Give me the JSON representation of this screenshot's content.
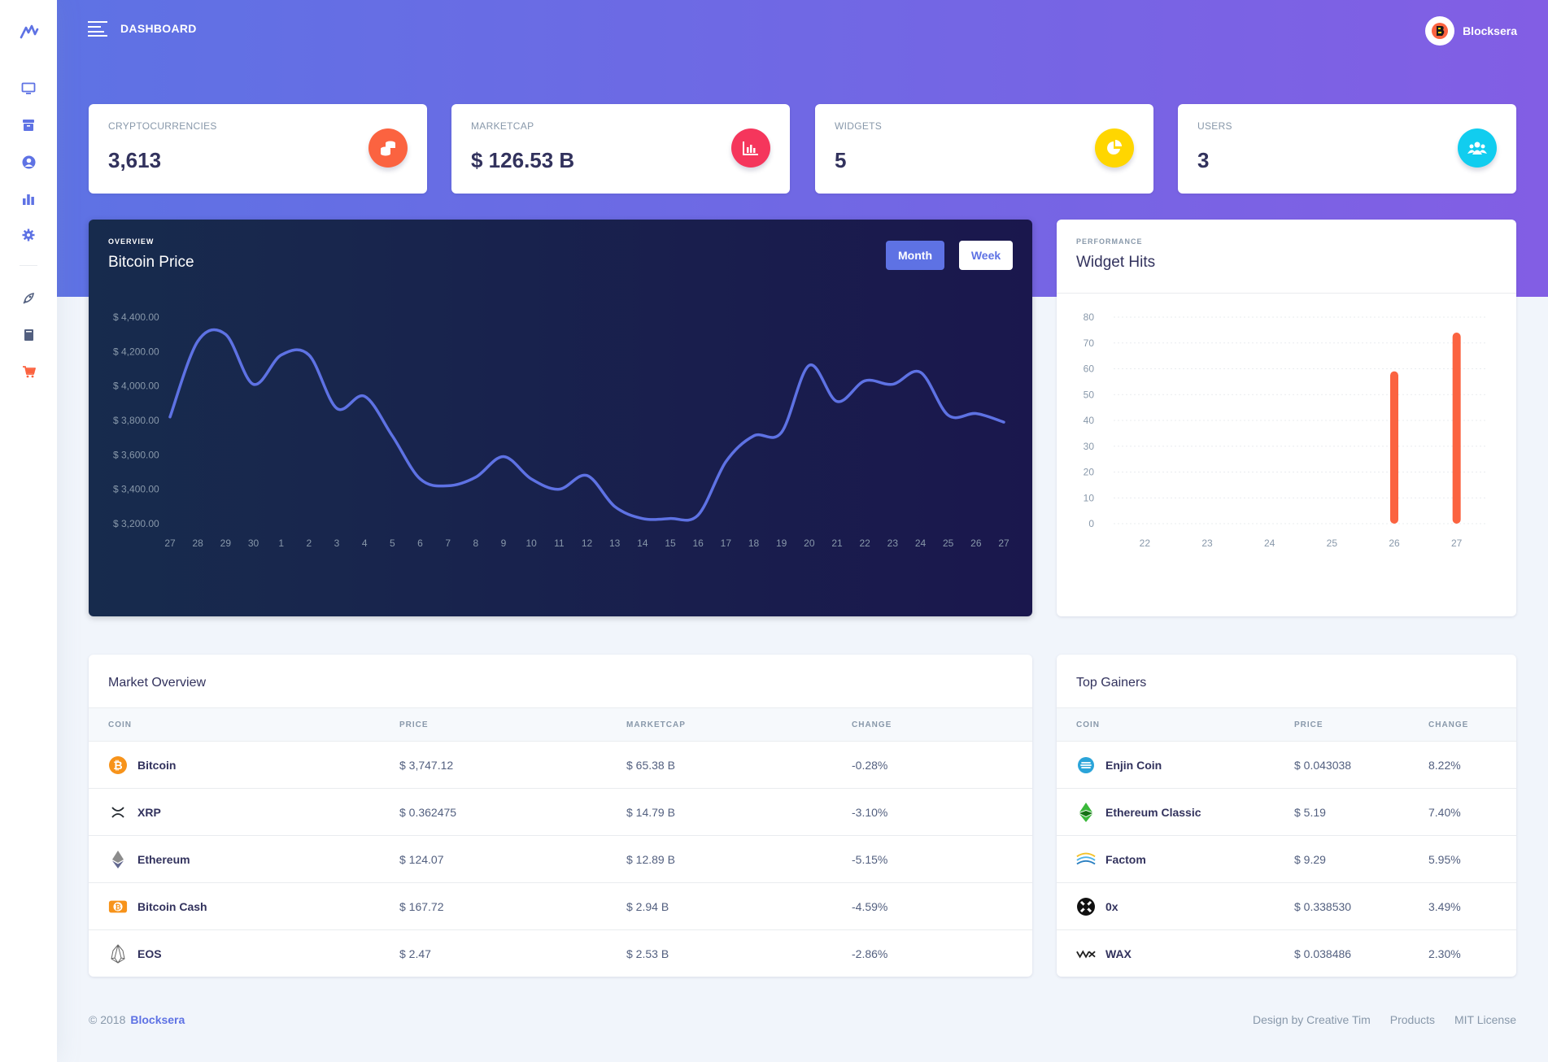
{
  "header": {
    "title": "DASHBOARD",
    "brand_name": "Blocksera"
  },
  "sidebar": {
    "items": [
      {
        "icon": "desktop-icon"
      },
      {
        "icon": "archive-icon"
      },
      {
        "icon": "user-circle-icon"
      },
      {
        "icon": "bar-chart-icon"
      },
      {
        "icon": "gear-icon"
      },
      {
        "icon": "rocket-icon"
      },
      {
        "icon": "book-icon"
      },
      {
        "icon": "cart-icon"
      }
    ]
  },
  "stats": [
    {
      "label": "CRYPTOCURRENCIES",
      "value": "3,613",
      "icon": "coins-icon",
      "color": "#fb6340"
    },
    {
      "label": "MARKETCAP",
      "value": "$ 126.53 B",
      "icon": "bar-chart-icon",
      "color": "#f5365c"
    },
    {
      "label": "WIDGETS",
      "value": "5",
      "icon": "pie-chart-icon",
      "color": "#ffd600"
    },
    {
      "label": "USERS",
      "value": "3",
      "icon": "users-icon",
      "color": "#11cdef"
    }
  ],
  "overview": {
    "eyebrow": "OVERVIEW",
    "title": "Bitcoin Price",
    "month_label": "Month",
    "week_label": "Week"
  },
  "performance": {
    "eyebrow": "PERFORMANCE",
    "title": "Widget Hits"
  },
  "chart_data": [
    {
      "type": "line",
      "title": "Bitcoin Price",
      "x": [
        "27",
        "28",
        "29",
        "30",
        "1",
        "2",
        "3",
        "4",
        "5",
        "6",
        "7",
        "8",
        "9",
        "10",
        "11",
        "12",
        "13",
        "14",
        "15",
        "16",
        "17",
        "18",
        "19",
        "20",
        "21",
        "22",
        "23",
        "24",
        "25",
        "26",
        "27"
      ],
      "ylim": [
        3200,
        4400
      ],
      "yticks": [
        "$ 3,200.00",
        "$ 3,400.00",
        "$ 3,600.00",
        "$ 3,800.00",
        "$ 4,000.00",
        "$ 4,200.00",
        "$ 4,400.00"
      ],
      "series": [
        {
          "values": [
            3820,
            4260,
            4300,
            4010,
            4180,
            4180,
            3870,
            3940,
            3710,
            3460,
            3420,
            3470,
            3590,
            3460,
            3400,
            3480,
            3300,
            3230,
            3230,
            3250,
            3560,
            3710,
            3730,
            4120,
            3910,
            4030,
            4010,
            4080,
            3830,
            3840,
            3790
          ],
          "color": "#5e72e4"
        }
      ],
      "grid": false
    },
    {
      "type": "bar",
      "title": "Widget Hits",
      "categories": [
        "22",
        "23",
        "24",
        "25",
        "26",
        "27"
      ],
      "values": [
        0,
        0,
        0,
        0,
        59,
        74
      ],
      "ylim": [
        0,
        80
      ],
      "yticks": [
        0,
        10,
        20,
        30,
        40,
        50,
        60,
        70,
        80
      ],
      "color": "#fb6340",
      "grid": true
    }
  ],
  "market": {
    "title": "Market Overview",
    "headers": [
      "COIN",
      "PRICE",
      "MARKETCAP",
      "CHANGE"
    ],
    "rows": [
      {
        "icon": "bitcoin-icon",
        "coin": "Bitcoin",
        "price": "$ 3,747.12",
        "marketcap": "$ 65.38 B",
        "change": "-0.28%"
      },
      {
        "icon": "xrp-icon",
        "coin": "XRP",
        "price": "$ 0.362475",
        "marketcap": "$ 14.79 B",
        "change": "-3.10%"
      },
      {
        "icon": "ethereum-icon",
        "coin": "Ethereum",
        "price": "$ 124.07",
        "marketcap": "$ 12.89 B",
        "change": "-5.15%"
      },
      {
        "icon": "bitcoin-cash-icon",
        "coin": "Bitcoin Cash",
        "price": "$ 167.72",
        "marketcap": "$ 2.94 B",
        "change": "-4.59%"
      },
      {
        "icon": "eos-icon",
        "coin": "EOS",
        "price": "$ 2.47",
        "marketcap": "$ 2.53 B",
        "change": "-2.86%"
      }
    ]
  },
  "gainers": {
    "title": "Top Gainers",
    "headers": [
      "COIN",
      "PRICE",
      "CHANGE"
    ],
    "rows": [
      {
        "icon": "enjin-icon",
        "coin": "Enjin Coin",
        "price": "$ 0.043038",
        "change": "8.22%"
      },
      {
        "icon": "ethereum-classic-icon",
        "coin": "Ethereum Classic",
        "price": "$ 5.19",
        "change": "7.40%"
      },
      {
        "icon": "factom-icon",
        "coin": "Factom",
        "price": "$ 9.29",
        "change": "5.95%"
      },
      {
        "icon": "0x-icon",
        "coin": "0x",
        "price": "$ 0.338530",
        "change": "3.49%"
      },
      {
        "icon": "wax-icon",
        "coin": "WAX",
        "price": "$ 0.038486",
        "change": "2.30%"
      }
    ]
  },
  "footer": {
    "copyright": "© 2018",
    "brand": "Blocksera",
    "links": [
      "Design by Creative Tim",
      "Products",
      "MIT License"
    ]
  }
}
